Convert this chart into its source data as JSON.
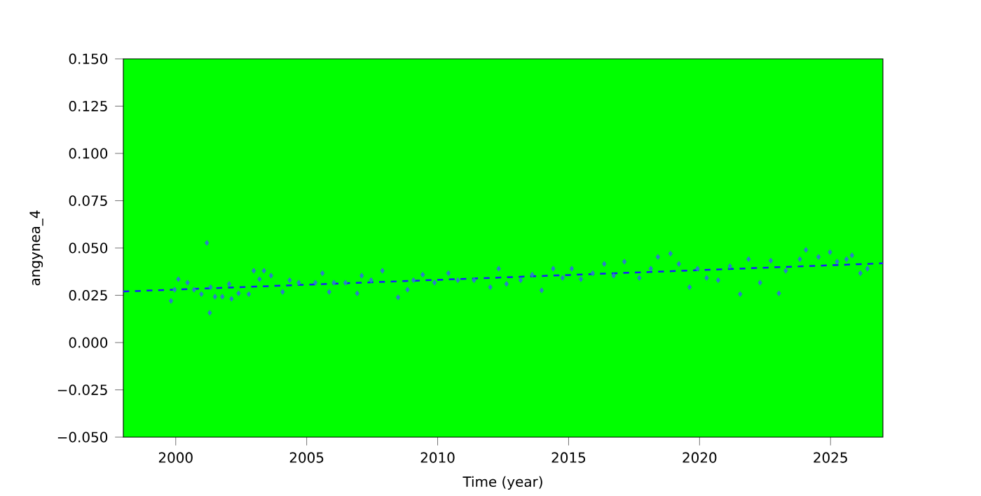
{
  "chart_data": {
    "type": "scatter",
    "xlabel": "Time (year)",
    "ylabel": "angynea_4",
    "xlim": [
      1998.0,
      2027.0
    ],
    "ylim": [
      -0.05,
      0.15
    ],
    "xticks": [
      2000,
      2005,
      2010,
      2015,
      2020,
      2025
    ],
    "yticks": [
      {
        "value": -0.05,
        "label": "−0.050"
      },
      {
        "value": -0.025,
        "label": "−0.025"
      },
      {
        "value": 0,
        "label": "0.000"
      },
      {
        "value": 0.025,
        "label": "0.025"
      },
      {
        "value": 0.05,
        "label": "0.050"
      },
      {
        "value": 0.075,
        "label": "0.075"
      },
      {
        "value": 0.1,
        "label": "0.100"
      },
      {
        "value": 0.125,
        "label": "0.125"
      },
      {
        "value": 0.15,
        "label": "0.150"
      }
    ],
    "marker": "diamond",
    "series": [
      {
        "color": "#2a7fc8",
        "x": [
          1999.82,
          1999.96,
          2000.1,
          2000.45,
          2000.7,
          2000.98,
          2001.19,
          2001.3,
          2001.33,
          2001.5,
          2001.78,
          2002.04,
          2002.13,
          2002.4,
          2002.79,
          2002.98,
          2003.2,
          2003.37,
          2003.64,
          2004.08,
          2004.35,
          2004.7,
          2005.33,
          2005.6,
          2005.86,
          2006.04,
          2006.48,
          2006.93,
          2007.1,
          2007.46,
          2007.89,
          2008.49,
          2008.85,
          2009.08,
          2009.43,
          2009.88,
          2010.41,
          2010.77,
          2011.39,
          2012.01,
          2012.33,
          2012.63,
          2013.17,
          2013.61,
          2013.97,
          2014.41,
          2014.77,
          2015.12,
          2015.47,
          2015.92,
          2016.36,
          2016.72,
          2017.13,
          2017.7,
          2018.14,
          2018.41,
          2018.89,
          2019.21,
          2019.62,
          2019.92,
          2020.27,
          2020.71,
          2021.16,
          2021.55,
          2021.87,
          2022.31,
          2022.72,
          2023.03,
          2023.29,
          2023.83,
          2024.06,
          2024.54,
          2024.98,
          2025.25,
          2025.61,
          2025.82,
          2026.14,
          2026.41
        ],
        "values": [
          0.022,
          0.028,
          0.0335,
          0.0317,
          0.028,
          0.0256,
          0.0527,
          0.0157,
          0.0293,
          0.0243,
          0.0243,
          0.031,
          0.0231,
          0.026,
          0.0256,
          0.038,
          0.0335,
          0.038,
          0.0354,
          0.0268,
          0.033,
          0.0317,
          0.0317,
          0.0367,
          0.0268,
          0.0317,
          0.0317,
          0.026,
          0.0354,
          0.033,
          0.038,
          0.0239,
          0.028,
          0.033,
          0.0359,
          0.0317,
          0.0367,
          0.033,
          0.033,
          0.0293,
          0.0391,
          0.031,
          0.033,
          0.0359,
          0.0276,
          0.0391,
          0.0342,
          0.0391,
          0.0335,
          0.0367,
          0.0416,
          0.0354,
          0.0428,
          0.0342,
          0.0391,
          0.0453,
          0.047,
          0.0416,
          0.0293,
          0.0391,
          0.0342,
          0.033,
          0.0404,
          0.0256,
          0.0441,
          0.0317,
          0.0433,
          0.026,
          0.038,
          0.0441,
          0.049,
          0.0453,
          0.0478,
          0.0428,
          0.0441,
          0.0461,
          0.0367,
          0.0391
        ]
      },
      {
        "type": "line",
        "color": "#1a1aff",
        "line_style": "dashed",
        "marker": "none",
        "x": [
          1998.0,
          2027.0
        ],
        "values": [
          0.027,
          0.0419
        ]
      }
    ]
  }
}
